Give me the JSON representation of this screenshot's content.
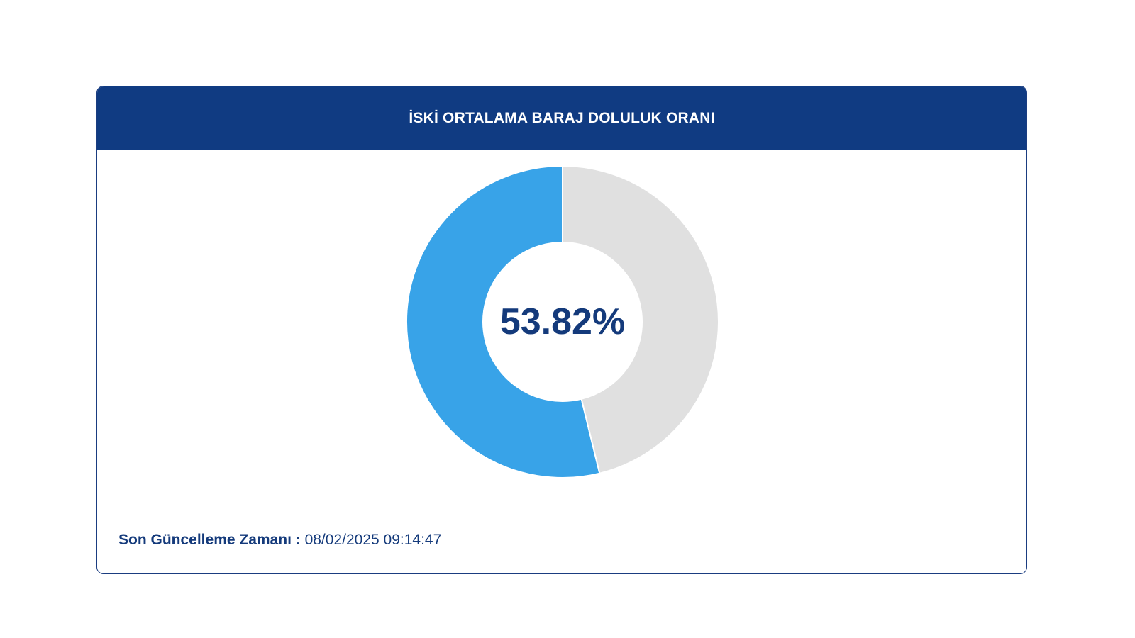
{
  "card": {
    "title": "İSKİ ORTALAMA BARAJ DOLULUK ORANI"
  },
  "chart_data": {
    "type": "pie",
    "donut": true,
    "slices": [
      {
        "value": 53.82,
        "color": "#38a3e8"
      },
      {
        "value": 46.18,
        "color": "#e0e0e0"
      }
    ],
    "center_label": "53.82%"
  },
  "footer": {
    "label": "Son Güncelleme Zamanı",
    "separator": " : ",
    "timestamp": "08/02/2025 09:14:47"
  },
  "colors": {
    "header_bg": "#103b82",
    "text_primary": "#143a7b",
    "filled": "#38a3e8",
    "empty": "#e0e0e0"
  }
}
